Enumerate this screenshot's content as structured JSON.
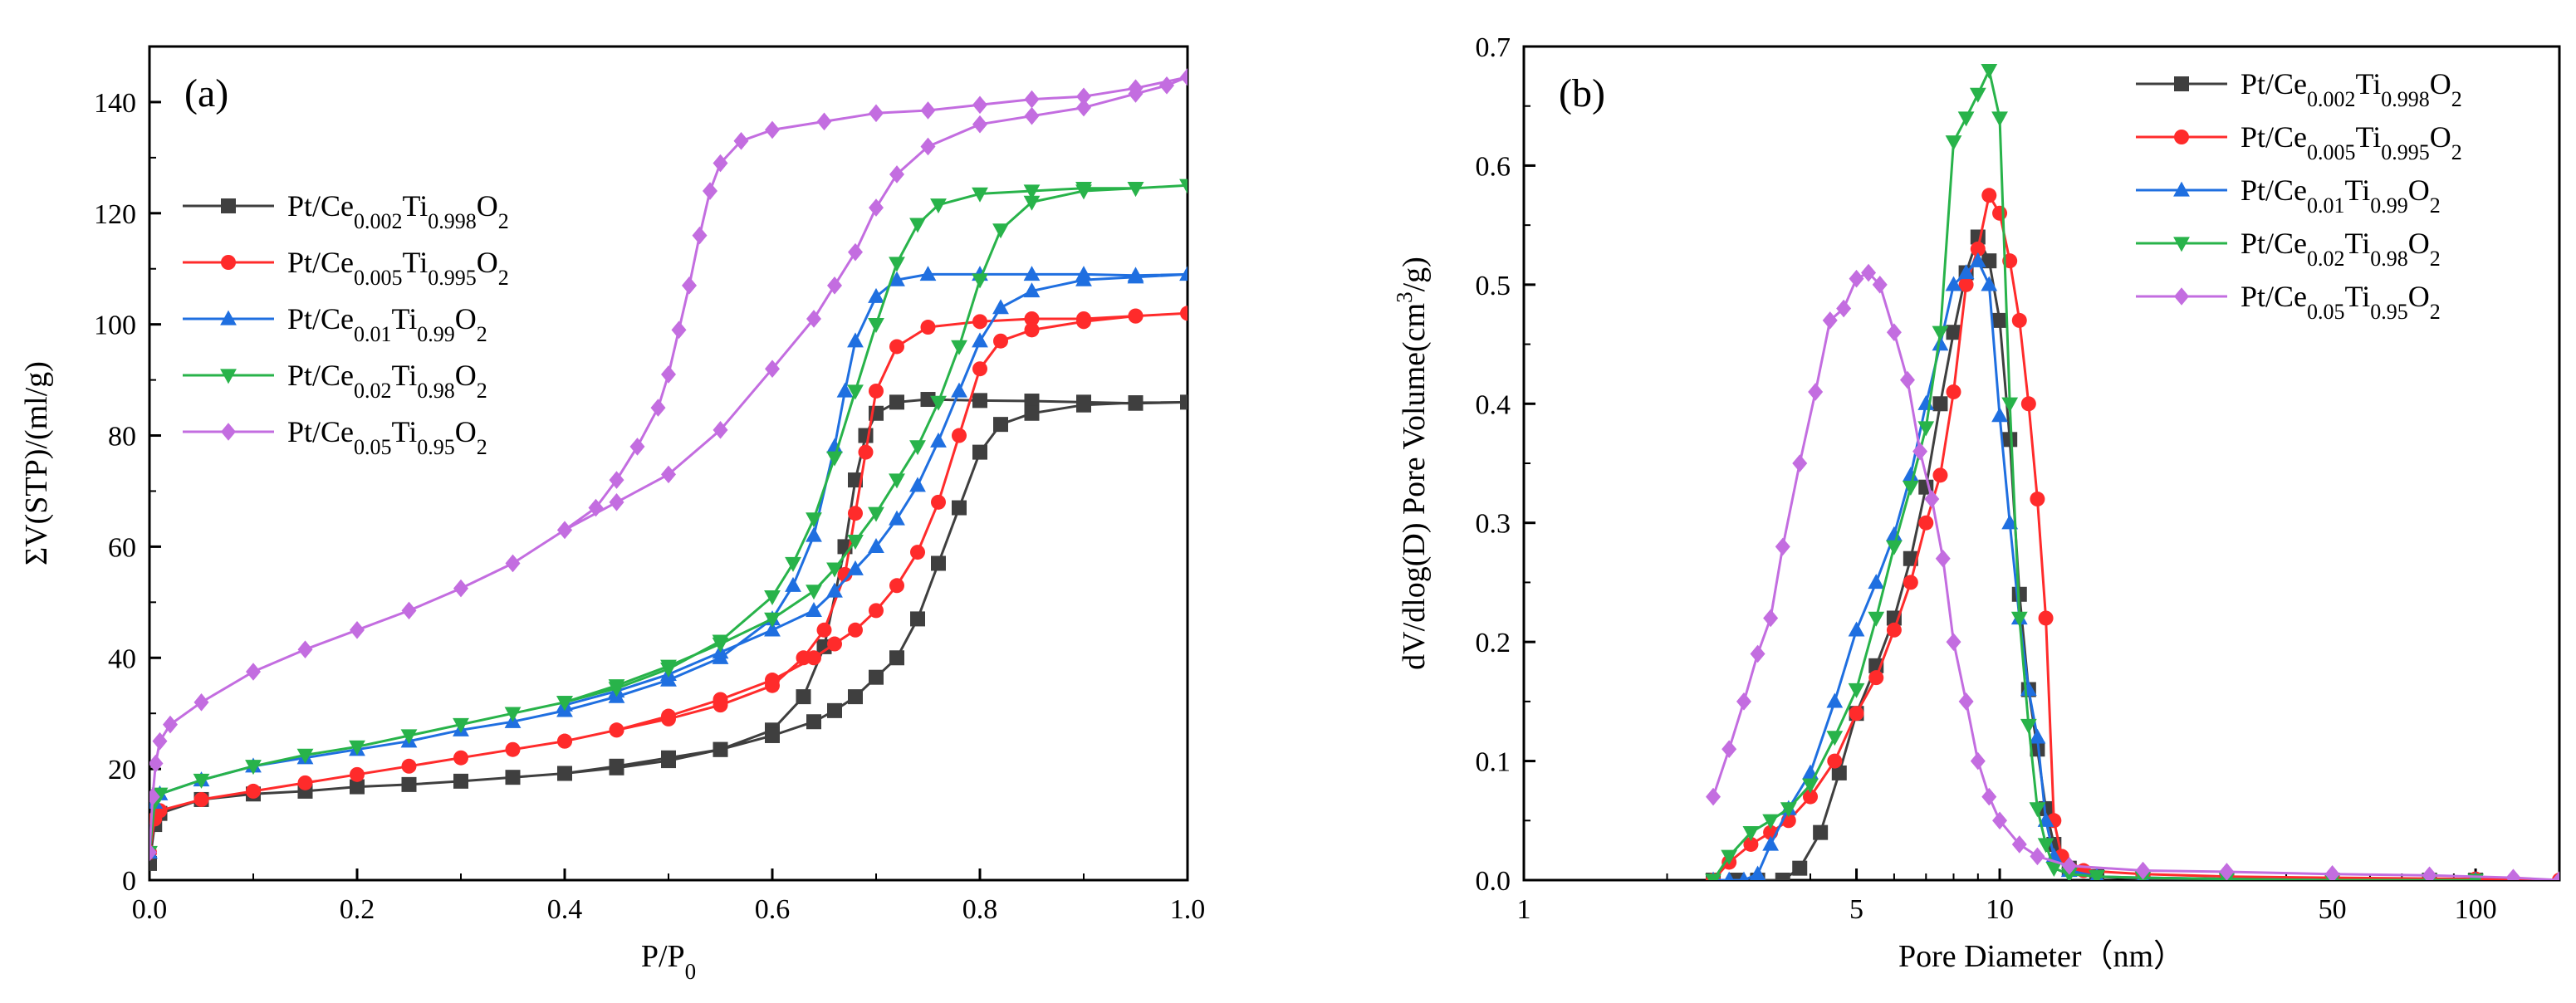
{
  "chart_data": [
    {
      "type": "line",
      "panel_label": "(a)",
      "xlabel": "P/P0",
      "ylabel": "ΣV(STP)/(ml/g)",
      "xlim": [
        0,
        1.0
      ],
      "ylim": [
        0,
        150
      ],
      "x_ticks": [
        0.0,
        0.2,
        0.4,
        0.6,
        0.8,
        1.0
      ],
      "x_tick_labels": [
        "0.0",
        "0.2",
        "0.4",
        "0.6",
        "0.8",
        "1.0"
      ],
      "y_ticks": [
        0,
        20,
        40,
        60,
        80,
        100,
        120,
        140
      ],
      "y_tick_labels": [
        "0",
        "20",
        "40",
        "60",
        "80",
        "100",
        "120",
        "140"
      ],
      "legend_position": "upper-left",
      "grid": false,
      "series": [
        {
          "name": "Pt/Ce0.002Ti0.998O2",
          "legend_base": "Pt/Ce",
          "legend_sub1": "0.002",
          "legend_mid": "Ti",
          "legend_sub2": "0.998",
          "legend_end": "O",
          "legend_sub3": "2",
          "color": "#3f3f3f",
          "marker": "square",
          "x": [
            0.0,
            0.005,
            0.01,
            0.05,
            0.1,
            0.15,
            0.2,
            0.25,
            0.3,
            0.35,
            0.4,
            0.45,
            0.5,
            0.55,
            0.6,
            0.63,
            0.65,
            0.67,
            0.68,
            0.69,
            0.7,
            0.72,
            0.75,
            0.8,
            0.85,
            0.9,
            0.95,
            1.0,
            0.95,
            0.9,
            0.85,
            0.82,
            0.8,
            0.78,
            0.76,
            0.74,
            0.72,
            0.7,
            0.68,
            0.66,
            0.64,
            0.6,
            0.55,
            0.5,
            0.45,
            0.4
          ],
          "y": [
            3,
            10,
            12,
            14.5,
            15.5,
            16,
            16.8,
            17.2,
            17.8,
            18.5,
            19.2,
            20.2,
            21.5,
            23.5,
            27,
            33,
            42,
            60,
            72,
            80,
            84,
            86,
            86.5,
            86.3,
            86.2,
            86,
            85.8,
            86,
            85.9,
            85.5,
            84,
            82,
            77,
            67,
            57,
            47,
            40,
            36.5,
            33,
            30.5,
            28.5,
            26,
            23.5,
            22,
            20.5,
            19.2
          ]
        },
        {
          "name": "Pt/Ce0.005Ti0.995O2",
          "legend_base": "Pt/Ce",
          "legend_sub1": "0.005",
          "legend_mid": "Ti",
          "legend_sub2": "0.995",
          "legend_end": "O",
          "legend_sub3": "2",
          "color": "#ff2b2b",
          "marker": "circle",
          "x": [
            0.0,
            0.005,
            0.01,
            0.05,
            0.1,
            0.15,
            0.2,
            0.25,
            0.3,
            0.35,
            0.4,
            0.45,
            0.5,
            0.55,
            0.6,
            0.63,
            0.65,
            0.67,
            0.68,
            0.69,
            0.7,
            0.72,
            0.75,
            0.8,
            0.85,
            0.9,
            0.95,
            1.0,
            0.95,
            0.9,
            0.85,
            0.82,
            0.8,
            0.78,
            0.76,
            0.74,
            0.72,
            0.7,
            0.68,
            0.66,
            0.64,
            0.6,
            0.55,
            0.5,
            0.45,
            0.4
          ],
          "y": [
            5,
            11,
            12.5,
            14.5,
            16,
            17.5,
            19,
            20.5,
            22,
            23.5,
            25,
            27,
            29,
            31.5,
            35,
            40,
            45,
            55,
            66,
            77,
            88,
            96,
            99.5,
            100.5,
            101,
            101,
            101.5,
            102,
            101.5,
            100.5,
            99,
            97,
            92,
            80,
            68,
            59,
            53,
            48.5,
            45,
            42.5,
            40,
            36,
            32.5,
            29.5,
            27,
            25
          ]
        },
        {
          "name": "Pt/Ce0.01Ti0.99O2",
          "legend_base": "Pt/Ce",
          "legend_sub1": "0.01",
          "legend_mid": "Ti",
          "legend_sub2": "0.99",
          "legend_end": "O",
          "legend_sub3": "2",
          "color": "#1f6fe0",
          "marker": "triangle-up",
          "x": [
            0.0,
            0.005,
            0.01,
            0.05,
            0.1,
            0.15,
            0.2,
            0.25,
            0.3,
            0.35,
            0.4,
            0.45,
            0.5,
            0.55,
            0.6,
            0.62,
            0.64,
            0.66,
            0.67,
            0.68,
            0.7,
            0.72,
            0.75,
            0.8,
            0.85,
            0.9,
            0.95,
            1.0,
            0.95,
            0.9,
            0.85,
            0.82,
            0.8,
            0.78,
            0.76,
            0.74,
            0.72,
            0.7,
            0.68,
            0.66,
            0.64,
            0.6,
            0.55,
            0.5,
            0.45,
            0.4
          ],
          "y": [
            5,
            14,
            15.5,
            18,
            20.5,
            22,
            23.5,
            25,
            27,
            28.5,
            30.5,
            33,
            36,
            40,
            47,
            53,
            62,
            78,
            88,
            97,
            105,
            108,
            109,
            109,
            109,
            109,
            108.8,
            109,
            108.5,
            108,
            106,
            103,
            97,
            88,
            79,
            71,
            65,
            60,
            56,
            52,
            48.5,
            45,
            41,
            37,
            34,
            31.5
          ]
        },
        {
          "name": "Pt/Ce0.02Ti0.98O2",
          "legend_base": "Pt/Ce",
          "legend_sub1": "0.02",
          "legend_mid": "Ti",
          "legend_sub2": "0.98",
          "legend_end": "O",
          "legend_sub3": "2",
          "color": "#28b34a",
          "marker": "triangle-down",
          "x": [
            0.0,
            0.005,
            0.01,
            0.05,
            0.1,
            0.15,
            0.2,
            0.25,
            0.3,
            0.35,
            0.4,
            0.45,
            0.5,
            0.55,
            0.6,
            0.62,
            0.64,
            0.66,
            0.68,
            0.7,
            0.72,
            0.74,
            0.76,
            0.8,
            0.85,
            0.9,
            0.95,
            1.0,
            0.95,
            0.9,
            0.85,
            0.82,
            0.8,
            0.78,
            0.76,
            0.74,
            0.72,
            0.7,
            0.68,
            0.66,
            0.64,
            0.6,
            0.55,
            0.5,
            0.45,
            0.4
          ],
          "y": [
            5,
            14,
            15.5,
            18,
            20.5,
            22.5,
            24,
            26,
            28,
            30,
            32,
            34.5,
            38,
            43,
            51,
            57,
            65,
            76,
            88,
            100,
            111,
            118,
            121.5,
            123.5,
            124,
            124.5,
            124.5,
            125,
            124.5,
            124,
            122,
            117,
            108,
            96,
            86,
            78,
            72,
            66,
            61,
            56,
            52,
            47,
            42.5,
            38.5,
            35,
            32
          ]
        },
        {
          "name": "Pt/Ce0.05Ti0.95O2",
          "legend_base": "Pt/Ce",
          "legend_sub1": "0.05",
          "legend_mid": "Ti",
          "legend_sub2": "0.95",
          "legend_end": "O",
          "legend_sub3": "2",
          "color": "#c36de0",
          "marker": "diamond",
          "x": [
            0.0,
            0.003,
            0.006,
            0.01,
            0.02,
            0.05,
            0.1,
            0.15,
            0.2,
            0.25,
            0.3,
            0.35,
            0.4,
            0.43,
            0.45,
            0.47,
            0.49,
            0.5,
            0.51,
            0.52,
            0.53,
            0.54,
            0.55,
            0.57,
            0.6,
            0.65,
            0.7,
            0.75,
            0.8,
            0.85,
            0.9,
            0.95,
            1.0,
            0.98,
            0.95,
            0.9,
            0.85,
            0.8,
            0.75,
            0.72,
            0.7,
            0.68,
            0.66,
            0.64,
            0.6,
            0.55,
            0.5,
            0.45,
            0.4
          ],
          "y": [
            5,
            15,
            21,
            25,
            28,
            32,
            37.5,
            41.5,
            45,
            48.5,
            52.5,
            57,
            63,
            67,
            72,
            78,
            85,
            91,
            99,
            107,
            116,
            124,
            129,
            133,
            135,
            136.5,
            138,
            138.5,
            139.5,
            140.5,
            141,
            142.5,
            144.5,
            143,
            141.5,
            139,
            137.5,
            136,
            132,
            127,
            121,
            113,
            107,
            101,
            92,
            81,
            73,
            68,
            63
          ]
        }
      ]
    },
    {
      "type": "line",
      "panel_label": "(b)",
      "xlabel": "Pore Diameter（nm）",
      "ylabel": "dV/dlog(D) Pore Volume(cm³/g)",
      "xlabel_text": "Pore Diameter（nm）",
      "ylabel_base": "dV/dlog(D) Pore Volume(cm",
      "ylabel_sup": "3",
      "ylabel_end": "/g)",
      "xscale": "log",
      "xlim": [
        1,
        150
      ],
      "ylim": [
        0,
        0.7
      ],
      "x_ticks": [
        1,
        5,
        10,
        50,
        100
      ],
      "x_tick_labels": [
        "1",
        "5",
        "10",
        "50",
        "100"
      ],
      "y_ticks": [
        0.0,
        0.1,
        0.2,
        0.3,
        0.4,
        0.5,
        0.6,
        0.7
      ],
      "y_tick_labels": [
        "0.0",
        "0.1",
        "0.2",
        "0.3",
        "0.4",
        "0.5",
        "0.6",
        "0.7"
      ],
      "legend_position": "upper-right",
      "grid": false,
      "series": [
        {
          "name": "Pt/Ce0.002Ti0.998O2",
          "color": "#3f3f3f",
          "marker": "square",
          "x": [
            2.5,
            2.8,
            3.1,
            3.5,
            3.8,
            4.2,
            4.6,
            5.0,
            5.5,
            6.0,
            6.5,
            7.0,
            7.5,
            8.0,
            8.5,
            9.0,
            9.5,
            10.0,
            10.5,
            11.0,
            11.5,
            12.0,
            12.5,
            13.0,
            14.0,
            16.0,
            20.0,
            30.0,
            50.0,
            80.0,
            100.0
          ],
          "y": [
            0.0,
            0.0,
            0.0,
            0.0,
            0.01,
            0.04,
            0.09,
            0.14,
            0.18,
            0.22,
            0.27,
            0.33,
            0.4,
            0.46,
            0.51,
            0.54,
            0.52,
            0.47,
            0.37,
            0.24,
            0.16,
            0.11,
            0.06,
            0.03,
            0.01,
            0.003,
            0.001,
            0.0,
            0.0,
            0.0,
            0.0
          ]
        },
        {
          "name": "Pt/Ce0.005Ti0.995O2",
          "color": "#ff2b2b",
          "marker": "circle",
          "x": [
            2.5,
            2.7,
            3.0,
            3.3,
            3.6,
            4.0,
            4.5,
            5.0,
            5.5,
            6.0,
            6.5,
            7.0,
            7.5,
            8.0,
            8.5,
            9.0,
            9.5,
            10.0,
            10.5,
            11.0,
            11.5,
            12.0,
            12.5,
            13.0,
            13.5,
            15.0,
            20.0,
            30.0,
            50.0,
            100.0,
            150.0
          ],
          "y": [
            0.0,
            0.015,
            0.03,
            0.04,
            0.05,
            0.07,
            0.1,
            0.14,
            0.17,
            0.21,
            0.25,
            0.3,
            0.34,
            0.41,
            0.5,
            0.53,
            0.575,
            0.56,
            0.52,
            0.47,
            0.4,
            0.32,
            0.22,
            0.05,
            0.02,
            0.008,
            0.005,
            0.003,
            0.002,
            0.001,
            0.0
          ]
        },
        {
          "name": "Pt/Ce0.01Ti0.99O2",
          "color": "#1f6fe0",
          "marker": "triangle-up",
          "x": [
            2.5,
            2.7,
            2.9,
            3.1,
            3.3,
            3.6,
            4.0,
            4.5,
            5.0,
            5.5,
            6.0,
            6.5,
            7.0,
            7.5,
            8.0,
            8.5,
            9.0,
            9.5,
            10.0,
            10.5,
            11.0,
            11.5,
            12.0,
            12.5,
            13.0,
            14.0,
            16.0,
            20.0,
            30.0,
            50.0,
            100.0
          ],
          "y": [
            0.0,
            0.0,
            0.0,
            0.005,
            0.03,
            0.06,
            0.09,
            0.15,
            0.21,
            0.25,
            0.29,
            0.34,
            0.4,
            0.45,
            0.5,
            0.51,
            0.52,
            0.5,
            0.39,
            0.3,
            0.22,
            0.16,
            0.12,
            0.05,
            0.02,
            0.008,
            0.003,
            0.002,
            0.001,
            0.0,
            0.0
          ]
        },
        {
          "name": "Pt/Ce0.02Ti0.98O2",
          "color": "#28b34a",
          "marker": "triangle-down",
          "x": [
            2.5,
            2.7,
            3.0,
            3.3,
            3.6,
            4.0,
            4.5,
            5.0,
            5.5,
            6.0,
            6.5,
            7.0,
            7.5,
            8.0,
            8.5,
            9.0,
            9.5,
            10.0,
            10.5,
            11.0,
            11.5,
            12.0,
            12.5,
            13.0,
            14.0,
            16.0,
            20.0,
            30.0,
            50.0,
            80.0,
            100.0
          ],
          "y": [
            0.0,
            0.02,
            0.04,
            0.05,
            0.06,
            0.08,
            0.12,
            0.16,
            0.22,
            0.28,
            0.33,
            0.38,
            0.46,
            0.62,
            0.64,
            0.66,
            0.68,
            0.64,
            0.4,
            0.22,
            0.13,
            0.06,
            0.03,
            0.01,
            0.005,
            0.003,
            0.002,
            0.001,
            0.0,
            0.0,
            0.0
          ]
        },
        {
          "name": "Pt/Ce0.05Ti0.95O2",
          "color": "#c36de0",
          "marker": "diamond",
          "x": [
            2.5,
            2.7,
            2.9,
            3.1,
            3.3,
            3.5,
            3.8,
            4.1,
            4.4,
            4.7,
            5.0,
            5.3,
            5.6,
            6.0,
            6.4,
            6.8,
            7.2,
            7.6,
            8.0,
            8.5,
            9.0,
            9.5,
            10.0,
            11.0,
            12.0,
            14.0,
            20.0,
            30.0,
            50.0,
            80.0,
            120.0,
            150.0
          ],
          "y": [
            0.07,
            0.11,
            0.15,
            0.19,
            0.22,
            0.28,
            0.35,
            0.41,
            0.47,
            0.48,
            0.505,
            0.51,
            0.5,
            0.46,
            0.42,
            0.36,
            0.32,
            0.27,
            0.2,
            0.15,
            0.1,
            0.07,
            0.05,
            0.03,
            0.02,
            0.012,
            0.008,
            0.007,
            0.005,
            0.004,
            0.002,
            0.0
          ]
        }
      ]
    }
  ]
}
